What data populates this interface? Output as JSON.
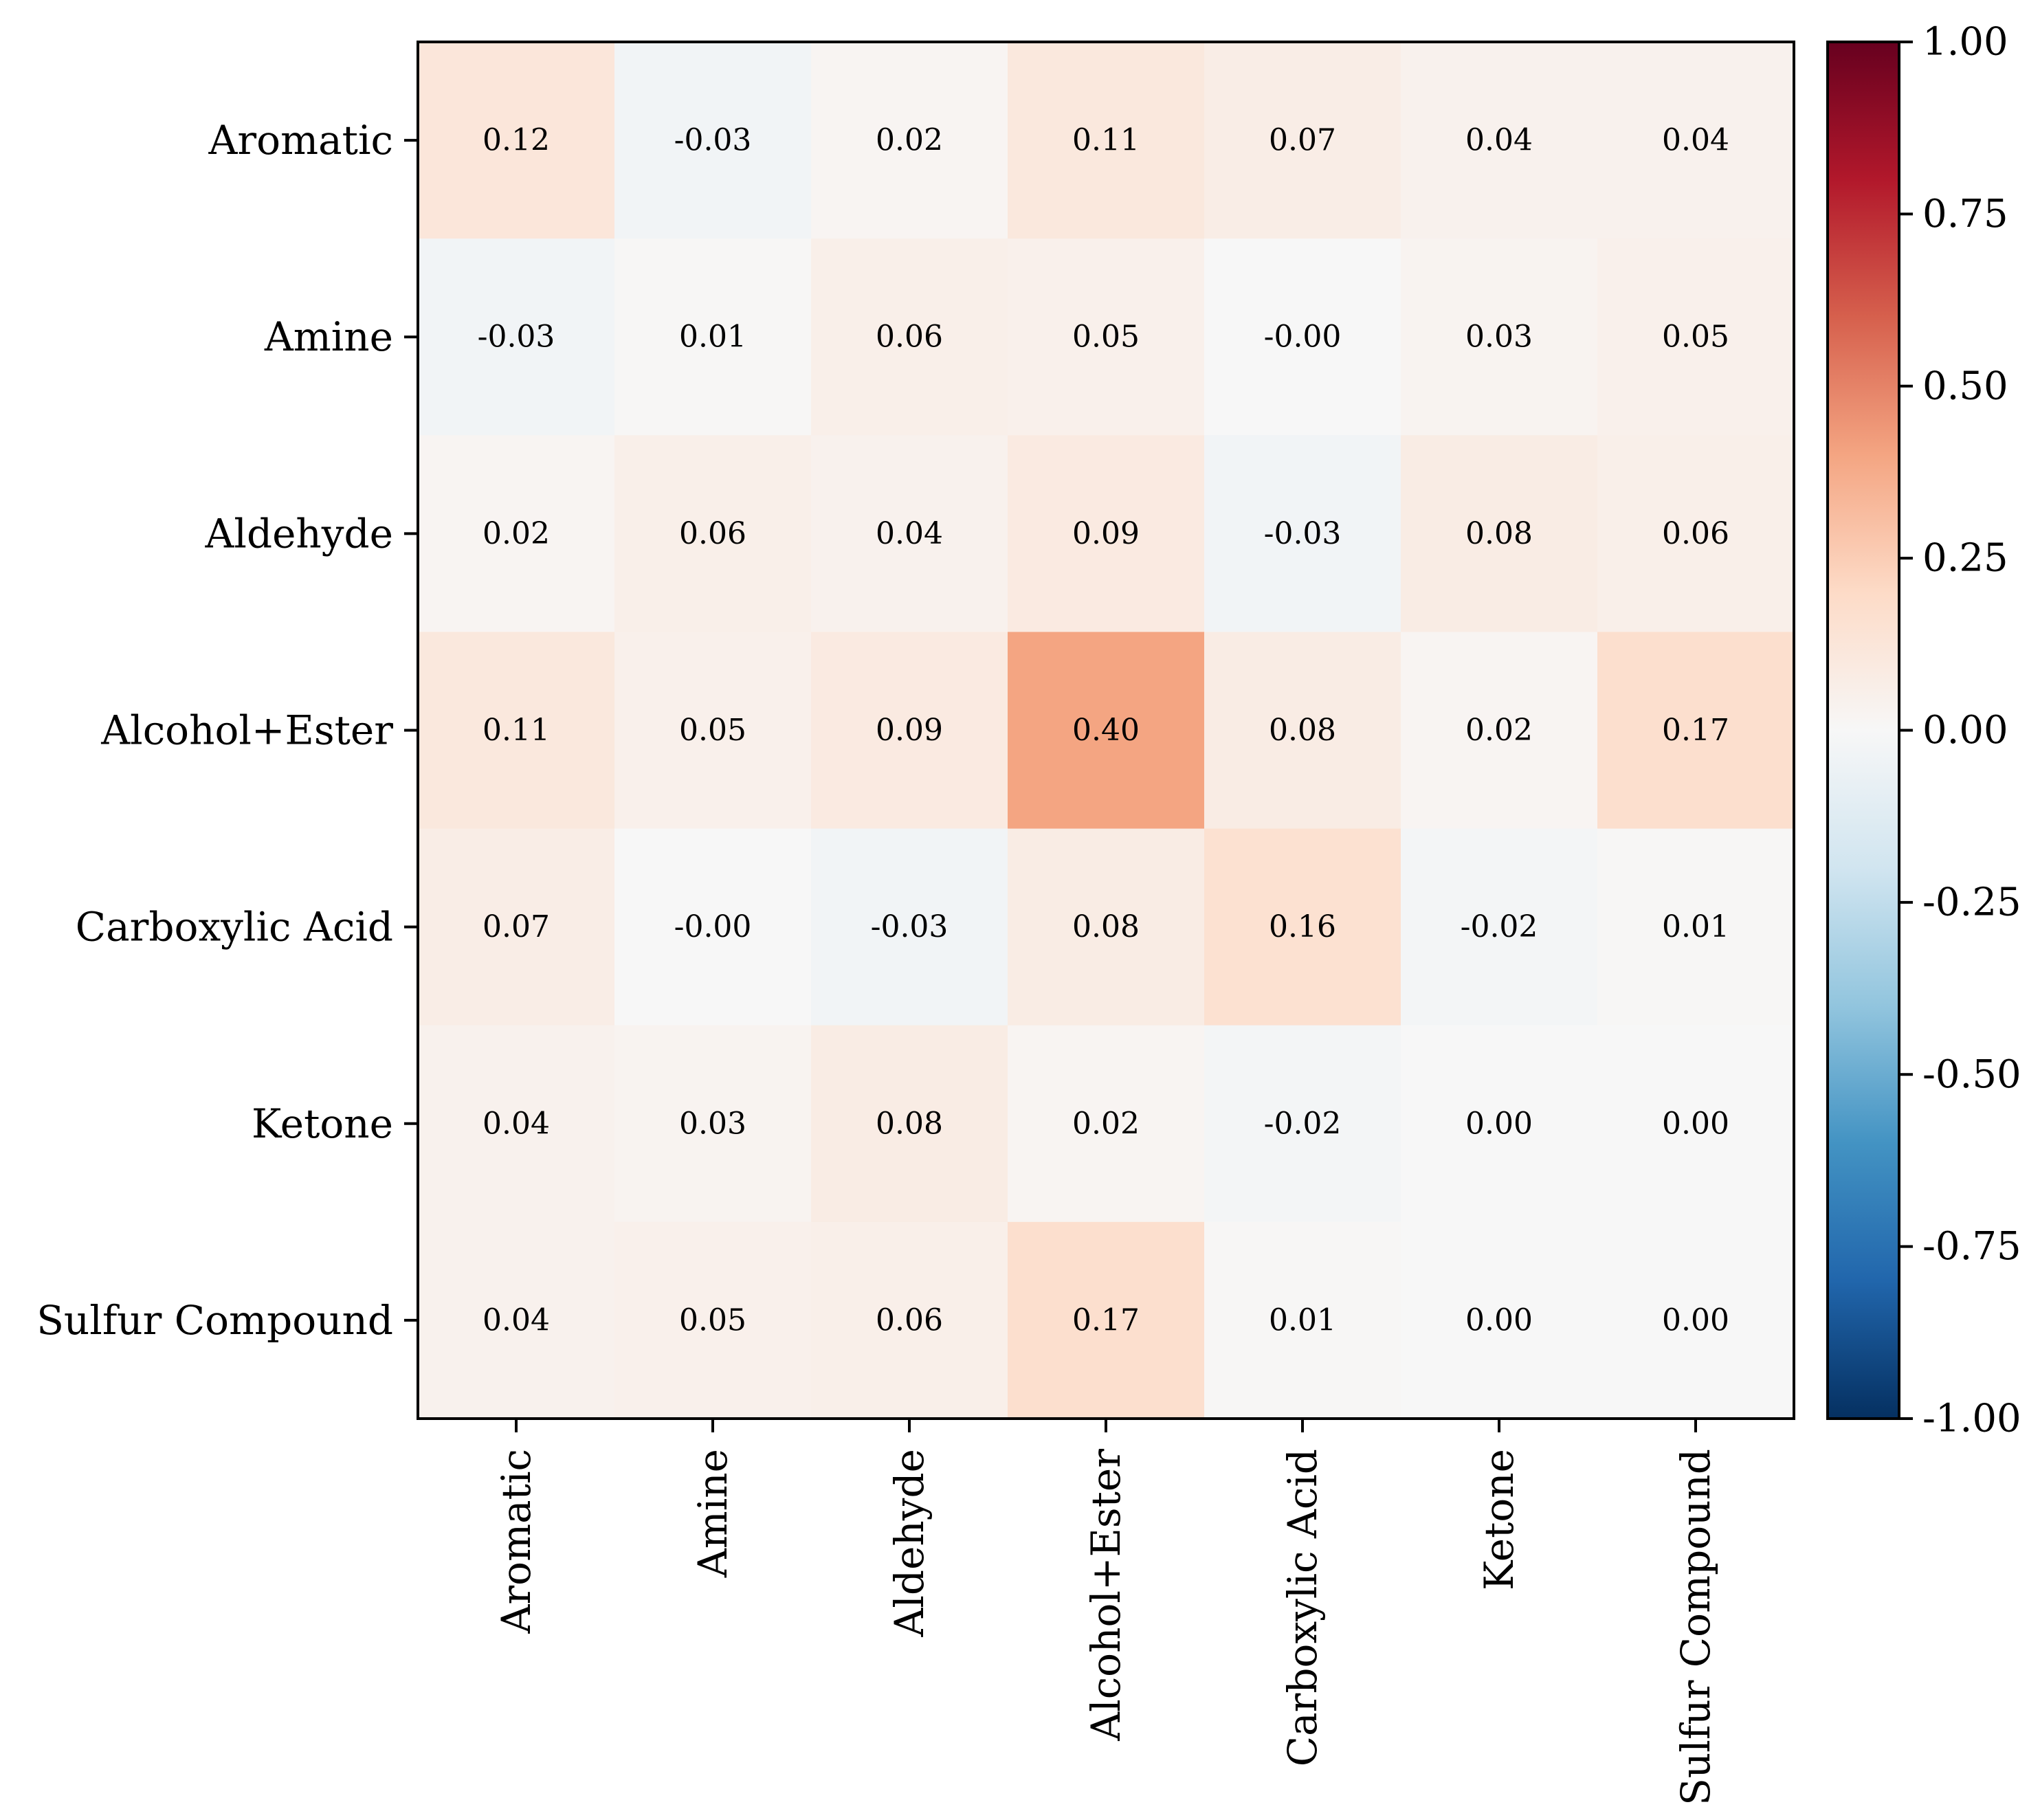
{
  "chart_data": {
    "type": "heatmap",
    "title": "",
    "xlabel": "",
    "ylabel": "",
    "rows": [
      "Aromatic",
      "Amine",
      "Aldehyde",
      "Alcohol+Ester",
      "Carboxylic Acid",
      "Ketone",
      "Sulfur Compound"
    ],
    "columns": [
      "Aromatic",
      "Amine",
      "Aldehyde",
      "Alcohol+Ester",
      "Carboxylic Acid",
      "Ketone",
      "Sulfur Compound"
    ],
    "values": [
      [
        0.12,
        -0.03,
        0.02,
        0.11,
        0.07,
        0.04,
        0.04
      ],
      [
        -0.03,
        0.01,
        0.06,
        0.05,
        -0.0,
        0.03,
        0.05
      ],
      [
        0.02,
        0.06,
        0.04,
        0.09,
        -0.03,
        0.08,
        0.06
      ],
      [
        0.11,
        0.05,
        0.09,
        0.4,
        0.08,
        0.02,
        0.17
      ],
      [
        0.07,
        -0.0,
        -0.03,
        0.08,
        0.16,
        -0.02,
        0.01
      ],
      [
        0.04,
        0.03,
        0.08,
        0.02,
        -0.02,
        0.0,
        0.0
      ],
      [
        0.04,
        0.05,
        0.06,
        0.17,
        0.01,
        0.0,
        0.0
      ]
    ],
    "value_labels": [
      [
        "0.12",
        "-0.03",
        "0.02",
        "0.11",
        "0.07",
        "0.04",
        "0.04"
      ],
      [
        "-0.03",
        "0.01",
        "0.06",
        "0.05",
        "-0.00",
        "0.03",
        "0.05"
      ],
      [
        "0.02",
        "0.06",
        "0.04",
        "0.09",
        "-0.03",
        "0.08",
        "0.06"
      ],
      [
        "0.11",
        "0.05",
        "0.09",
        "0.40",
        "0.08",
        "0.02",
        "0.17"
      ],
      [
        "0.07",
        "-0.00",
        "-0.03",
        "0.08",
        "0.16",
        "-0.02",
        "0.01"
      ],
      [
        "0.04",
        "0.03",
        "0.08",
        "0.02",
        "-0.02",
        "0.00",
        "0.00"
      ],
      [
        "0.04",
        "0.05",
        "0.06",
        "0.17",
        "0.01",
        "0.00",
        "0.00"
      ]
    ],
    "colormap": "RdBu_r",
    "colormap_stops": [
      "#053061",
      "#2166ac",
      "#4393c3",
      "#92c5de",
      "#d1e5f0",
      "#f7f7f7",
      "#fddbc7",
      "#f4a582",
      "#d6604d",
      "#b2182b",
      "#67001f"
    ],
    "vmin": -1.0,
    "vmax": 1.0,
    "colorbar_ticks": [
      1.0,
      0.75,
      0.5,
      0.25,
      0.0,
      -0.25,
      -0.5,
      -0.75,
      -1.0
    ],
    "colorbar_tick_labels": [
      "1.00",
      "0.75",
      "0.50",
      "0.25",
      "0.00",
      "-0.25",
      "-0.50",
      "-0.75",
      "-1.00"
    ],
    "legend": "colorbar-right",
    "grid": false
  }
}
